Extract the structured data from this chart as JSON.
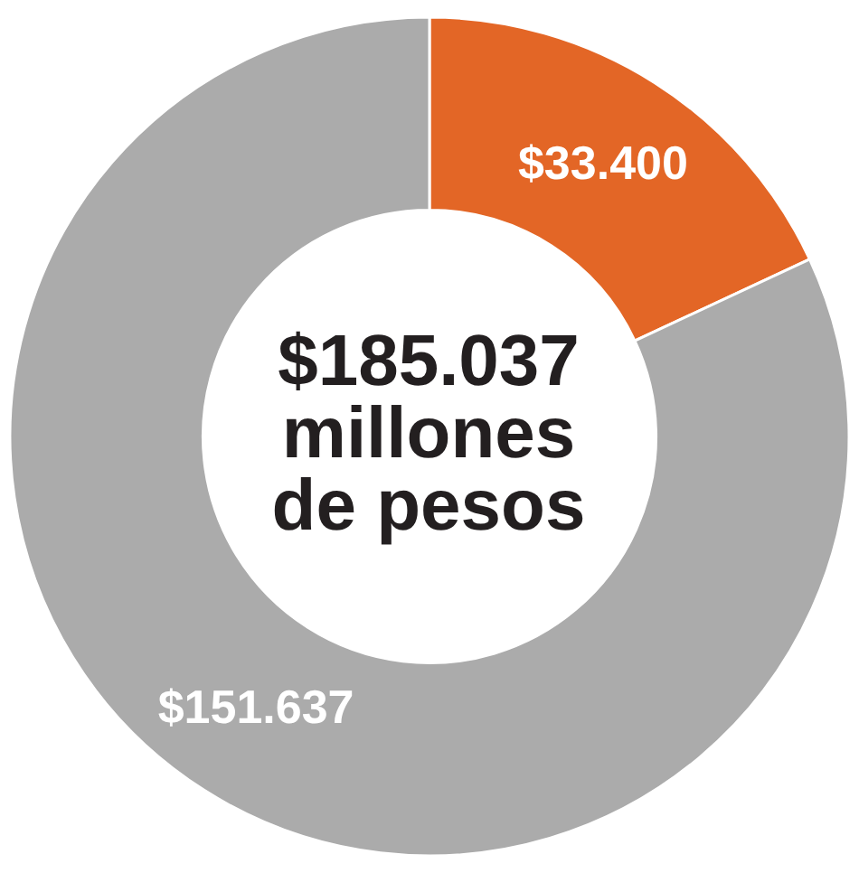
{
  "chart_data": {
    "type": "donut",
    "categories": [
      null,
      null
    ],
    "values": [
      33400,
      151637
    ],
    "colors": [
      "#e36626",
      "#ababab"
    ],
    "value_labels": [
      "$33.400",
      "$151.637"
    ],
    "annotations": [
      "$185.037\nmillones\nde pesos"
    ],
    "legend": false
  }
}
